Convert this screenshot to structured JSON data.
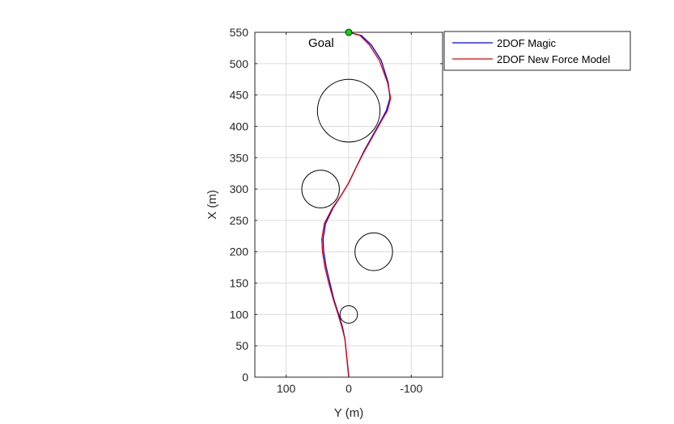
{
  "chart_data": {
    "type": "line",
    "xlabel": "Y (m)",
    "ylabel": "X (m)",
    "x_reversed": true,
    "xlim": [
      150,
      -150
    ],
    "ylim": [
      0,
      550
    ],
    "xticks": [
      100,
      0,
      -100
    ],
    "yticks": [
      0,
      50,
      100,
      150,
      200,
      250,
      300,
      350,
      400,
      450,
      500,
      550
    ],
    "grid": true,
    "legend_position": "outside top-right",
    "series": [
      {
        "name": "2DOF Magic",
        "color": "#0000ff",
        "points": [
          [
            0,
            0
          ],
          [
            3,
            30
          ],
          [
            6,
            60
          ],
          [
            10,
            80
          ],
          [
            16,
            100
          ],
          [
            24,
            125
          ],
          [
            30,
            150
          ],
          [
            36,
            175
          ],
          [
            40,
            200
          ],
          [
            41,
            220
          ],
          [
            37,
            245
          ],
          [
            25,
            270
          ],
          [
            12,
            290
          ],
          [
            0,
            310
          ],
          [
            -12,
            335
          ],
          [
            -24,
            360
          ],
          [
            -38,
            385
          ],
          [
            -52,
            410
          ],
          [
            -60,
            425
          ],
          [
            -66,
            445
          ],
          [
            -63,
            470
          ],
          [
            -52,
            505
          ],
          [
            -36,
            530
          ],
          [
            -20,
            545
          ],
          [
            0,
            550
          ]
        ]
      },
      {
        "name": "2DOF New Force Model",
        "color": "#e00000",
        "points": [
          [
            0,
            0
          ],
          [
            3,
            30
          ],
          [
            6,
            60
          ],
          [
            11,
            80
          ],
          [
            17,
            100
          ],
          [
            25,
            125
          ],
          [
            32,
            150
          ],
          [
            38,
            175
          ],
          [
            42,
            200
          ],
          [
            43,
            220
          ],
          [
            39,
            245
          ],
          [
            26,
            270
          ],
          [
            12,
            290
          ],
          [
            0,
            310
          ],
          [
            -12,
            335
          ],
          [
            -25,
            360
          ],
          [
            -39,
            385
          ],
          [
            -53,
            410
          ],
          [
            -62,
            425
          ],
          [
            -67,
            445
          ],
          [
            -62,
            470
          ],
          [
            -49,
            505
          ],
          [
            -33,
            530
          ],
          [
            -18,
            545
          ],
          [
            0,
            550
          ]
        ]
      }
    ],
    "obstacles": [
      {
        "y": 0,
        "x": 100,
        "r": 14
      },
      {
        "y": -40,
        "x": 200,
        "r": 30
      },
      {
        "y": 45,
        "x": 300,
        "r": 30
      },
      {
        "y": 0,
        "x": 425,
        "r": 50
      }
    ],
    "goal": {
      "y": 0,
      "x": 550,
      "color": "#00dd00",
      "label": "Goal"
    }
  }
}
